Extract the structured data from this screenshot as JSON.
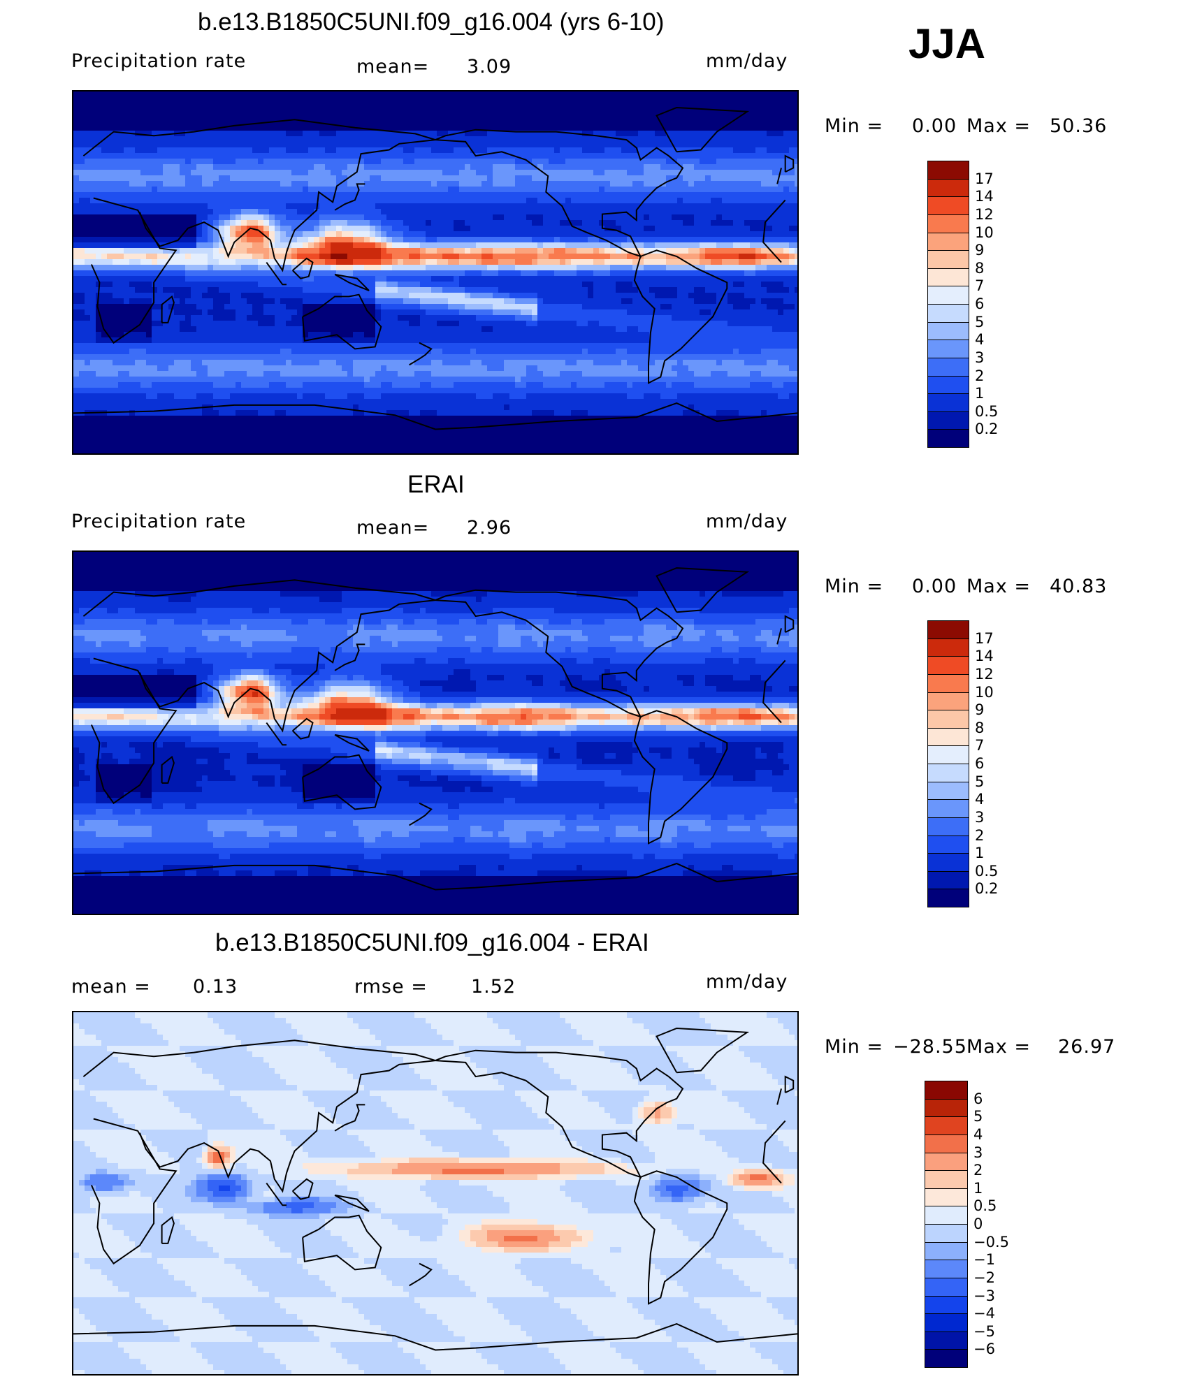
{
  "season": "JJA",
  "panels": [
    {
      "title": "b.e13.B1850C5UNI.f09_g16.004 (yrs 6-10)",
      "left_label": "Precipitation  rate",
      "mid_label": "mean=",
      "mid_value": "3.09",
      "units": "mm/day",
      "min_label": "Min  =",
      "min_value": "0.00",
      "max_label": "Max  =",
      "max_value": "50.36",
      "colorbar_labels": [
        "17",
        "14",
        "12",
        "10",
        "9",
        "8",
        "7",
        "6",
        "5",
        "4",
        "3",
        "2",
        "1",
        "0.5",
        "0.2"
      ]
    },
    {
      "title": "ERAI",
      "left_label": "Precipitation  rate",
      "mid_label": "mean=",
      "mid_value": "2.96",
      "units": "mm/day",
      "min_label": "Min  =",
      "min_value": "0.00",
      "max_label": "Max  =",
      "max_value": "40.83",
      "colorbar_labels": [
        "17",
        "14",
        "12",
        "10",
        "9",
        "8",
        "7",
        "6",
        "5",
        "4",
        "3",
        "2",
        "1",
        "0.5",
        "0.2"
      ]
    },
    {
      "title": "b.e13.B1850C5UNI.f09_g16.004 - ERAI",
      "left_label": "mean  =",
      "left_value": "0.13",
      "mid_label": "rmse  =",
      "mid_value": "1.52",
      "units": "mm/day",
      "min_label": "Min  =",
      "min_value": "−28.55",
      "max_label": "Max  =",
      "max_value": "26.97",
      "colorbar_labels": [
        "6",
        "5",
        "4",
        "3",
        "2",
        "1",
        "0.5",
        "0",
        "−0.5",
        "−1",
        "−2",
        "−3",
        "−4",
        "−5",
        "−6"
      ]
    }
  ],
  "chart_data": [
    {
      "type": "heatmap",
      "title": "b.e13.B1850C5UNI.f09_g16.004 (yrs 6-10)",
      "field": "Precipitation rate",
      "units": "mm/day",
      "mean": 3.09,
      "min": 0.0,
      "max": 50.36,
      "contour_levels": [
        0.2,
        0.5,
        1,
        2,
        3,
        4,
        5,
        6,
        7,
        8,
        9,
        10,
        12,
        14,
        17
      ],
      "colors": [
        "#00007a",
        "#0018b0",
        "#0a32d6",
        "#1f4ff0",
        "#3d6ef7",
        "#6a96fb",
        "#9cbcfd",
        "#c6dbfe",
        "#e4eefd",
        "#fde6d6",
        "#fcc7a8",
        "#fba37c",
        "#f97a4e",
        "#ef4b25",
        "#cc2a0c",
        "#8c0b02"
      ]
    },
    {
      "type": "heatmap",
      "title": "ERAI",
      "field": "Precipitation rate",
      "units": "mm/day",
      "mean": 2.96,
      "min": 0.0,
      "max": 40.83,
      "contour_levels": [
        0.2,
        0.5,
        1,
        2,
        3,
        4,
        5,
        6,
        7,
        8,
        9,
        10,
        12,
        14,
        17
      ],
      "colors": [
        "#00007a",
        "#0018b0",
        "#0a32d6",
        "#1f4ff0",
        "#3d6ef7",
        "#6a96fb",
        "#9cbcfd",
        "#c6dbfe",
        "#e4eefd",
        "#fde6d6",
        "#fcc7a8",
        "#fba37c",
        "#f97a4e",
        "#ef4b25",
        "#cc2a0c",
        "#8c0b02"
      ]
    },
    {
      "type": "heatmap",
      "title": "b.e13.B1850C5UNI.f09_g16.004 - ERAI",
      "units": "mm/day",
      "mean": 0.13,
      "rmse": 1.52,
      "min": -28.55,
      "max": 26.97,
      "contour_levels": [
        -6,
        -5,
        -4,
        -3,
        -2,
        -1,
        -0.5,
        0,
        0.5,
        1,
        2,
        3,
        4,
        5,
        6
      ],
      "colors": [
        "#00007a",
        "#0014a8",
        "#0028d0",
        "#1444ec",
        "#3464f6",
        "#5c88fa",
        "#8cb0fc",
        "#bcd4fe",
        "#e0ecfd",
        "#fde8da",
        "#fccaae",
        "#faa07e",
        "#f2704a",
        "#e04420",
        "#b82408",
        "#8a0802"
      ]
    }
  ]
}
